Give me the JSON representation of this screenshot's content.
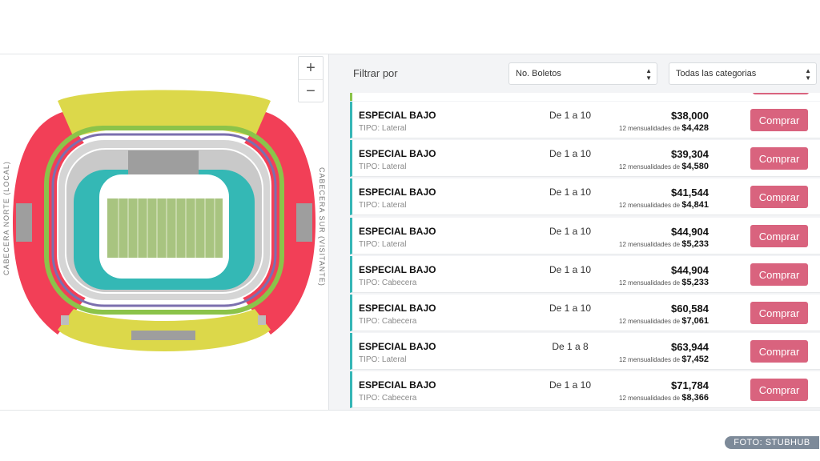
{
  "map": {
    "zoom_in": "+",
    "zoom_out": "−",
    "label_left": "CABECERA NORTE (LOCAL)",
    "label_right": "CABECERA SUR (VISITANTE)"
  },
  "filter": {
    "label": "Filtrar por",
    "boletos": "No. Boletos",
    "categorias": "Todas las categorias"
  },
  "listings": [
    {
      "title": "ESPECIAL BAJO",
      "type": "TIPO: Lateral",
      "qty": "De 1 a 10",
      "price": "$38,000",
      "monthly_prefix": "12 mensualidades de",
      "monthly": "$4,428",
      "button": "Comprar"
    },
    {
      "title": "ESPECIAL BAJO",
      "type": "TIPO: Lateral",
      "qty": "De 1 a 10",
      "price": "$39,304",
      "monthly_prefix": "12 mensualidades de",
      "monthly": "$4,580",
      "button": "Comprar"
    },
    {
      "title": "ESPECIAL BAJO",
      "type": "TIPO: Lateral",
      "qty": "De 1 a 10",
      "price": "$41,544",
      "monthly_prefix": "12 mensualidades de",
      "monthly": "$4,841",
      "button": "Comprar"
    },
    {
      "title": "ESPECIAL BAJO",
      "type": "TIPO: Lateral",
      "qty": "De 1 a 10",
      "price": "$44,904",
      "monthly_prefix": "12 mensualidades de",
      "monthly": "$5,233",
      "button": "Comprar"
    },
    {
      "title": "ESPECIAL BAJO",
      "type": "TIPO: Cabecera",
      "qty": "De 1 a 10",
      "price": "$44,904",
      "monthly_prefix": "12 mensualidades de",
      "monthly": "$5,233",
      "button": "Comprar"
    },
    {
      "title": "ESPECIAL BAJO",
      "type": "TIPO: Cabecera",
      "qty": "De 1 a 10",
      "price": "$60,584",
      "monthly_prefix": "12 mensualidades de",
      "monthly": "$7,061",
      "button": "Comprar"
    },
    {
      "title": "ESPECIAL BAJO",
      "type": "TIPO: Lateral",
      "qty": "De 1 a 8",
      "price": "$63,944",
      "monthly_prefix": "12 mensualidades de",
      "monthly": "$7,452",
      "button": "Comprar"
    },
    {
      "title": "ESPECIAL BAJO",
      "type": "TIPO: Cabecera",
      "qty": "De 1 a 10",
      "price": "$71,784",
      "monthly_prefix": "12 mensualidades de",
      "monthly": "$8,366",
      "button": "Comprar"
    }
  ],
  "credit": "FOTO: STUBHUB",
  "colors": {
    "button": "#d9637e",
    "row_accent": "#35b6b6",
    "red_section": "#f23f57",
    "yellow_section": "#dcd84a",
    "teal_section": "#34b8b5",
    "green_ring": "#8bc34a",
    "purple_ring": "#7b6fae",
    "field": "#a8c480"
  }
}
